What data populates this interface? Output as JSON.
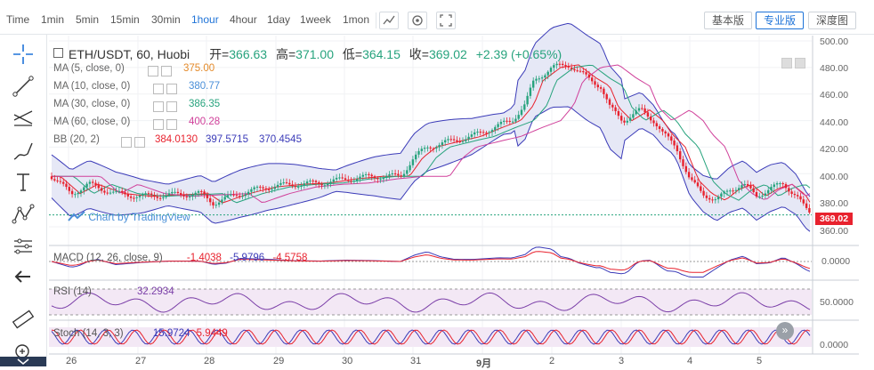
{
  "toolbar": {
    "timeframes": [
      "Time",
      "1min",
      "5min",
      "15min",
      "30min",
      "1hour",
      "4hour",
      "1day",
      "1week",
      "1mon"
    ],
    "active_timeframe": "1hour",
    "buttons": {
      "basic": "基本版",
      "pro": "专业版",
      "depth": "深度图"
    }
  },
  "legend": {
    "symbol": "ETH/USDT, 60, Huobi",
    "open_label": "开=",
    "open": "366.63",
    "high_label": "高=",
    "high": "371.00",
    "low_label": "低=",
    "low": "364.15",
    "close_label": "收=",
    "close": "369.02",
    "change": "+2.39 (+0.65%)",
    "ma": [
      {
        "label": "MA (5, close, 0)",
        "value": "375.00",
        "color": "#e48a2a"
      },
      {
        "label": "MA (10, close, 0)",
        "value": "380.77",
        "color": "#4a8fd8"
      },
      {
        "label": "MA (30, close, 0)",
        "value": "386.35",
        "color": "#27a37d"
      },
      {
        "label": "MA (60, close, 0)",
        "value": "400.28",
        "color": "#d0409a"
      }
    ],
    "bb": {
      "label": "BB (20, 2)",
      "v1": "384.0130",
      "v2": "397.5715",
      "v3": "370.4545"
    }
  },
  "watermark": "Chart by TradingView",
  "price_axis": [
    "500.00",
    "480.00",
    "460.00",
    "440.00",
    "420.00",
    "400.00",
    "380.00",
    "360.00"
  ],
  "last_price": "369.02",
  "macd": {
    "label": "MACD (12, 26, close, 9)",
    "v1": "-1.4038",
    "v2": "-5.9796",
    "v3": "-4.5758",
    "axis": "0.0000"
  },
  "rsi": {
    "label": "RSI (14)",
    "value": "32.2934",
    "axis": "50.0000"
  },
  "stoch": {
    "label": "Stoch (14, 3, 3)",
    "v1": "15.9724",
    "v2": "5.9449",
    "axis": "0.0000"
  },
  "dates": [
    "26",
    "27",
    "28",
    "29",
    "30",
    "31",
    "9月",
    "2",
    "3",
    "4",
    "5"
  ],
  "colors": {
    "up": "#27a37d",
    "down": "#e8222e",
    "accent": "#1e73d8"
  },
  "icons": [
    "crosshair-icon",
    "trend-line-icon",
    "fib-icon",
    "brush-icon",
    "text-icon",
    "pattern-icon",
    "measure-icon",
    "back-arrow-icon",
    "ruler-icon",
    "zoom-icon"
  ]
}
